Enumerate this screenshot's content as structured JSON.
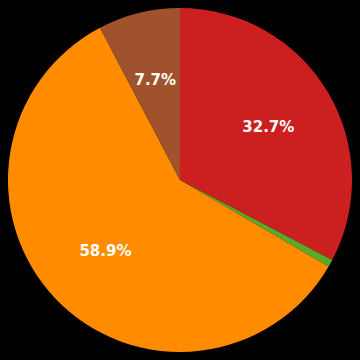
{
  "chart_data": {
    "type": "pie",
    "values": [
      32.7,
      0.7,
      58.9,
      7.7
    ],
    "value_labels": [
      "32.7%",
      null,
      "58.9%",
      "7.7%"
    ],
    "colors": [
      "#cc1f1f",
      "#5aaa2a",
      "#ff8c00",
      "#a0522d"
    ],
    "data_labels": true
  }
}
